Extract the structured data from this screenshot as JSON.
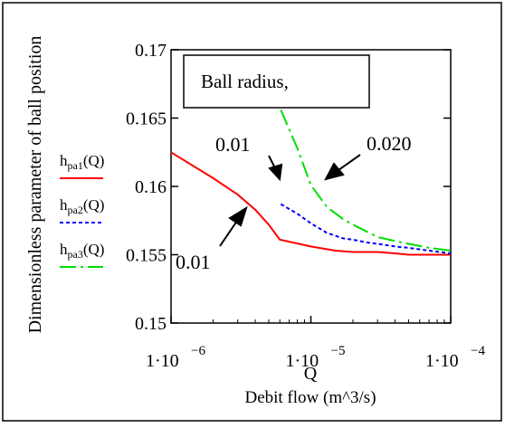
{
  "chart_data": {
    "type": "line",
    "title": "",
    "xlabel": "Q",
    "xlabel_secondary": "Debit flow (m^3/s)",
    "ylabel": "Dimensionless parameter of ball position",
    "x_scale": "log",
    "xlim": [
      1e-06,
      0.0001
    ],
    "ylim": [
      0.15,
      0.17
    ],
    "grid": false,
    "x_ticks": [
      {
        "value": 1e-06,
        "mantissa": "1·10",
        "exponent": "6"
      },
      {
        "value": 1e-05,
        "mantissa": "1·10",
        "exponent": "5"
      },
      {
        "value": 0.0001,
        "mantissa": "1·10",
        "exponent": "4"
      }
    ],
    "y_ticks": [
      {
        "value": 0.15,
        "label": "0.15"
      },
      {
        "value": 0.155,
        "label": "0.155"
      },
      {
        "value": 0.16,
        "label": "0.16"
      },
      {
        "value": 0.165,
        "label": "0.165"
      },
      {
        "value": 0.17,
        "label": "0.17"
      }
    ],
    "legend": {
      "placement": "left",
      "entries": [
        {
          "base": "h",
          "sub": "pa1",
          "suffix": "(Q)"
        },
        {
          "base": "h",
          "sub": "pa2",
          "suffix": "(Q)"
        },
        {
          "base": "h",
          "sub": "pa3",
          "suffix": "(Q)"
        }
      ]
    },
    "series": [
      {
        "color": "#ff0000",
        "dash": "solid",
        "x": [
          1e-06,
          2e-06,
          3e-06,
          4e-06,
          5e-06,
          6e-06,
          1e-05,
          1.5e-05,
          2e-05,
          3e-05,
          4e-05,
          5e-05,
          7e-05,
          0.0001
        ],
        "y": [
          0.1625,
          0.1606,
          0.1594,
          0.1583,
          0.1572,
          0.1561,
          0.1556,
          0.1553,
          0.1552,
          0.1552,
          0.1551,
          0.155,
          0.155,
          0.155
        ]
      },
      {
        "color": "#0000ff",
        "dash": "dotted",
        "x": [
          6.1e-06,
          8e-06,
          1e-05,
          1.3e-05,
          1.7e-05,
          2e-05,
          2.5e-05,
          3e-05,
          4e-05,
          5e-05,
          7e-05,
          0.0001
        ],
        "y": [
          0.1587,
          0.158,
          0.1573,
          0.1566,
          0.1562,
          0.1561,
          0.1559,
          0.1558,
          0.1556,
          0.1555,
          0.1553,
          0.1551
        ]
      },
      {
        "color": "#00dd00",
        "dash": "dashdot",
        "x": [
          6.1e-06,
          8e-06,
          1e-05,
          1.3e-05,
          1.7e-05,
          2e-05,
          2.5e-05,
          3e-05,
          4e-05,
          5e-05,
          7e-05,
          0.0001
        ],
        "y": [
          0.1656,
          0.1628,
          0.1601,
          0.1585,
          0.1576,
          0.1572,
          0.1567,
          0.1563,
          0.156,
          0.1558,
          0.1555,
          0.1553
        ]
      }
    ],
    "annotations": {
      "box_text": "Ball radius,",
      "labels": [
        {
          "text": "0.01",
          "target": "upper"
        },
        {
          "text": "0.020",
          "target": "green"
        },
        {
          "text": "0.01",
          "target": "lower"
        }
      ]
    }
  }
}
